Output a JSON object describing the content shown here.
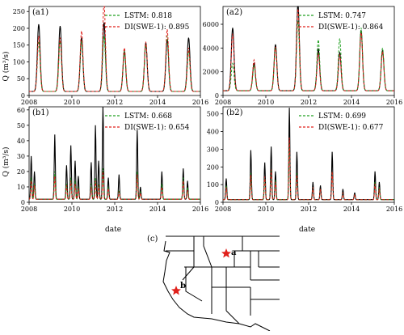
{
  "colors": {
    "observed": "#000000",
    "lstm": "#22a022",
    "di": "#e0201b",
    "map_star": "#e0201b"
  },
  "x_axis_label": "date",
  "y_axis_label": "Q (m³/s)",
  "map_label": "(c)",
  "map_sites": [
    "a",
    "b"
  ],
  "chart_data": [
    {
      "type": "line",
      "panel": "(a1)",
      "xlabel": "",
      "ylabel": "Q (m³/s)",
      "xlim": [
        2008,
        2016
      ],
      "ylim": [
        0,
        265
      ],
      "x_ticks": [
        "2008",
        "2010",
        "2012",
        "2014",
        "2016"
      ],
      "y_ticks": [
        0,
        50,
        100,
        150,
        200,
        250
      ],
      "legend": [
        "LSTM: 0.818",
        "DI(SWE-1): 0.895"
      ],
      "legend_position": "top-right",
      "peaks": {
        "x": [
          2008.45,
          2009.45,
          2010.45,
          2011.5,
          2012.45,
          2013.45,
          2014.45,
          2015.45
        ],
        "observed": [
          200,
          195,
          160,
          205,
          120,
          145,
          155,
          160
        ],
        "lstm": [
          150,
          150,
          150,
          165,
          118,
          140,
          165,
          118
        ],
        "di": [
          165,
          160,
          180,
          268,
          130,
          148,
          185,
          130
        ]
      },
      "baseflow": 12
    },
    {
      "type": "line",
      "panel": "(a2)",
      "xlabel": "",
      "ylabel": "",
      "xlim": [
        2008,
        2016
      ],
      "ylim": [
        0,
        7500
      ],
      "x_ticks": [
        "2008",
        "2010",
        "2012",
        "2014",
        "2016"
      ],
      "y_ticks": [
        0,
        2000,
        4000,
        6000
      ],
      "legend": [
        "LSTM: 0.747",
        "DI(SWE-1): 0.864"
      ],
      "legend_position": "top-right",
      "peaks": {
        "x": [
          2008.45,
          2009.45,
          2010.45,
          2011.5,
          2012.45,
          2013.45,
          2014.45,
          2015.45
        ],
        "observed": [
          5300,
          2300,
          3900,
          7400,
          3500,
          3200,
          5100,
          3400
        ],
        "lstm": [
          2300,
          2100,
          3600,
          5900,
          4300,
          4400,
          5300,
          3600
        ],
        "di": [
          4800,
          2600,
          3700,
          6900,
          3100,
          3000,
          4900,
          3300
        ]
      },
      "baseflow": 400
    },
    {
      "type": "line",
      "panel": "(b1)",
      "xlabel": "date",
      "ylabel": "Q (m³/s)",
      "xlim": [
        2008,
        2016
      ],
      "ylim": [
        0,
        62
      ],
      "x_ticks": [
        "2008",
        "2010",
        "2012",
        "2014",
        "2016"
      ],
      "y_ticks": [
        0,
        10,
        20,
        30,
        40,
        50,
        60
      ],
      "legend": [
        "LSTM: 0.668",
        "DI(SWE-1): 0.654"
      ],
      "legend_position": "top-right",
      "peaks": {
        "x": [
          2008.1,
          2008.25,
          2009.2,
          2009.75,
          2009.95,
          2010.15,
          2010.3,
          2010.9,
          2011.1,
          2011.25,
          2011.45,
          2011.7,
          2012.2,
          2013.05,
          2013.2,
          2014.2,
          2015.2,
          2015.4
        ],
        "observed": [
          28,
          18,
          42,
          22,
          35,
          25,
          15,
          24,
          48,
          25,
          61,
          14,
          16,
          45,
          8,
          18,
          20,
          12
        ],
        "lstm": [
          14,
          10,
          18,
          10,
          14,
          12,
          8,
          10,
          14,
          10,
          20,
          8,
          6,
          18,
          5,
          10,
          14,
          8
        ],
        "di": [
          12,
          9,
          15,
          9,
          12,
          10,
          7,
          8,
          12,
          9,
          18,
          7,
          5,
          16,
          4,
          8,
          12,
          6
        ]
      },
      "baseflow": 2
    },
    {
      "type": "line",
      "panel": "(b2)",
      "xlabel": "date",
      "ylabel": "",
      "xlim": [
        2008,
        2016
      ],
      "ylim": [
        0,
        540
      ],
      "x_ticks": [
        "2008",
        "2010",
        "2012",
        "2014",
        "2016"
      ],
      "y_ticks": [
        0,
        100,
        200,
        300,
        400,
        500
      ],
      "legend": [
        "LSTM: 0.699",
        "DI(SWE-1): 0.677"
      ],
      "legend_position": "top-right",
      "peaks": {
        "x": [
          2008.15,
          2009.3,
          2009.95,
          2010.25,
          2010.45,
          2011.1,
          2011.45,
          2012.2,
          2012.55,
          2013.1,
          2013.6,
          2014.15,
          2015.1,
          2015.3
        ],
        "observed": [
          120,
          280,
          210,
          300,
          160,
          520,
          270,
          100,
          80,
          270,
          60,
          40,
          160,
          100
        ],
        "lstm": [
          80,
          150,
          120,
          170,
          110,
          320,
          150,
          70,
          60,
          160,
          40,
          30,
          100,
          70
        ],
        "di": [
          70,
          140,
          130,
          170,
          100,
          350,
          140,
          70,
          60,
          160,
          40,
          30,
          90,
          60
        ]
      },
      "baseflow": 15
    }
  ]
}
